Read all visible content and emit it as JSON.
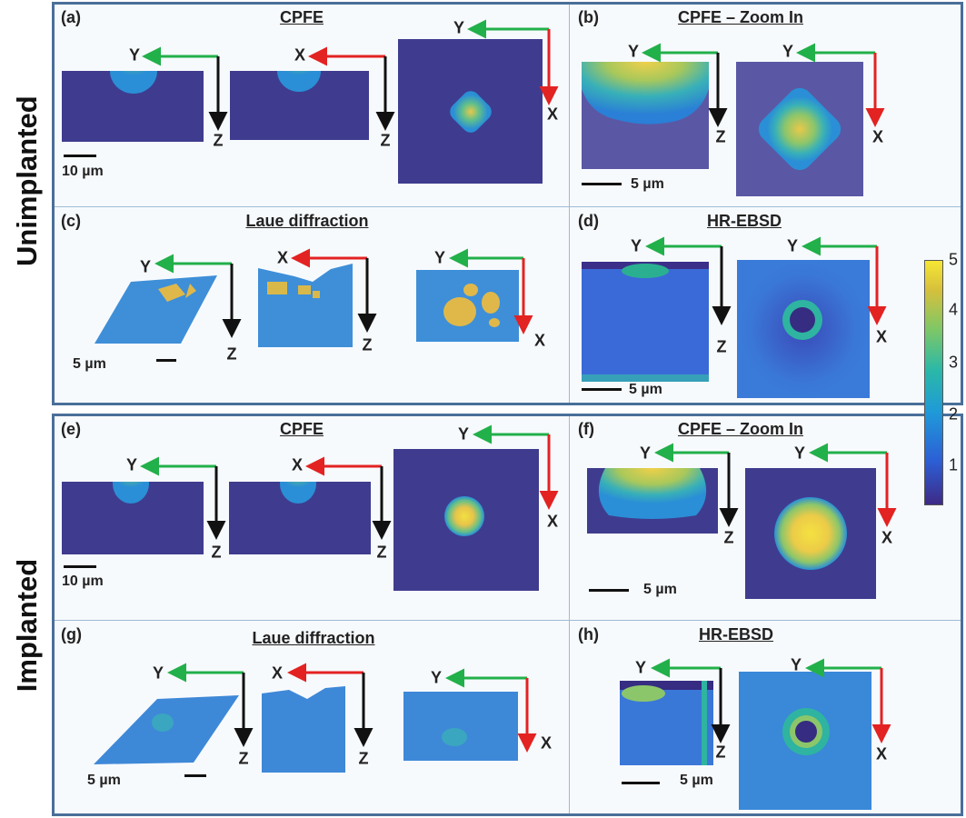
{
  "row_labels": {
    "top": "Unimplanted",
    "bottom": "Implanted"
  },
  "panels": {
    "a": {
      "label": "(a)",
      "title": "CPFE",
      "scale": "10 µm"
    },
    "b": {
      "label": "(b)",
      "title": "CPFE – Zoom In",
      "scale": "5 µm"
    },
    "c": {
      "label": "(c)",
      "title": "Laue diffraction",
      "scale": "5 µm"
    },
    "d": {
      "label": "(d)",
      "title": "HR-EBSD",
      "scale": "5 µm"
    },
    "e": {
      "label": "(e)",
      "title": "CPFE",
      "scale": "10 µm"
    },
    "f": {
      "label": "(f)",
      "title": "CPFE – Zoom In",
      "scale": "5 µm"
    },
    "g": {
      "label": "(g)",
      "title": "Laue diffraction",
      "scale": "5 µm"
    },
    "h": {
      "label": "(h)",
      "title": "HR-EBSD",
      "scale": "5 µm"
    }
  },
  "axes": {
    "x": "X",
    "y": "Y",
    "z": "Z"
  },
  "colorbar": {
    "ticks": [
      "5",
      "4",
      "3",
      "2",
      "1"
    ],
    "colors": [
      "#3e2a86",
      "#2c5fd6",
      "#1f9ad8",
      "#2ab8a8",
      "#7fc766",
      "#d6c03c",
      "#f6e634"
    ]
  },
  "arrow_colors": {
    "x": "#e32222",
    "y": "#22b04a",
    "z": "#111111"
  }
}
